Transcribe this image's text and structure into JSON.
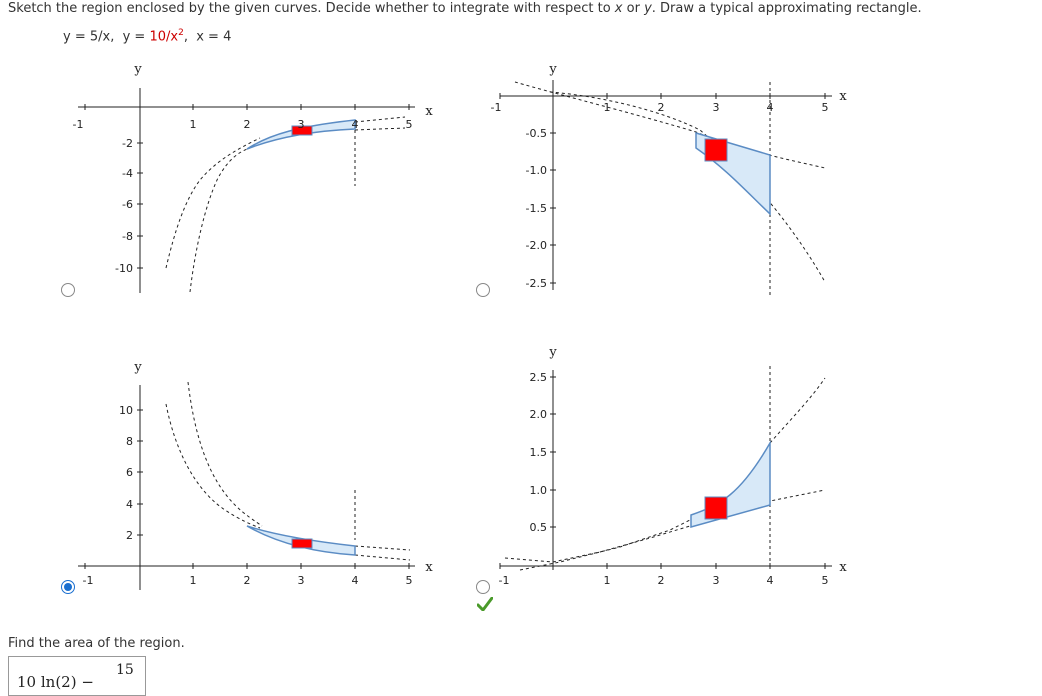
{
  "question": {
    "prompt_pre": "Sketch the region enclosed by the given curves. Decide whether to integrate with respect to ",
    "var_x": "x",
    "prompt_or": " or ",
    "var_y": "y",
    "prompt_post": ". Draw a typical approximating rectangle.",
    "eq1_lhs": "y = 5/x,",
    "eq2_lhs": "y = ",
    "eq2_red": "10/x",
    "eq2_exp": "2",
    "eq2_sep": ",",
    "eq3": "x = 4"
  },
  "options": [
    {
      "id": "A",
      "selected": false,
      "x_label": "x",
      "y_label": "y",
      "x_ticks": [
        "-1",
        "1",
        "2",
        "3",
        "4",
        "5"
      ],
      "y_ticks": [
        "-2",
        "-4",
        "-6",
        "-8",
        "-10"
      ]
    },
    {
      "id": "B",
      "selected": false,
      "x_label": "x",
      "y_label": "y",
      "x_ticks": [
        "-1",
        "1",
        "2",
        "3",
        "4",
        "5"
      ],
      "y_ticks": [
        "-0.5",
        "-1.0",
        "-1.5",
        "-2.0",
        "-2.5"
      ]
    },
    {
      "id": "C",
      "selected": true,
      "x_label": "x",
      "y_label": "y",
      "x_ticks": [
        "-1",
        "1",
        "2",
        "3",
        "4",
        "5"
      ],
      "y_ticks": [
        "10",
        "8",
        "6",
        "4",
        "2"
      ]
    },
    {
      "id": "D",
      "selected": false,
      "marked_correct": true,
      "x_label": "x",
      "y_label": "y",
      "x_ticks": [
        "-1",
        "1",
        "2",
        "3",
        "4",
        "5"
      ],
      "y_ticks": [
        "2.5",
        "2.0",
        "1.5",
        "1.0",
        "0.5"
      ]
    }
  ],
  "area_section": {
    "label": "Find the area of the region.",
    "answer_part1": "10 ln(2) −",
    "answer_numerator": "15"
  },
  "colors": {
    "region_fill": "#d8e9f8",
    "region_stroke": "#5b8cc4",
    "rectangle": "#ff0000",
    "equation_highlight": "#cc0000",
    "radio_selected": "#1a6fd0",
    "check_green": "#4a9a2a"
  },
  "icons": {
    "correct": "check-icon",
    "radio": "radio-button"
  }
}
